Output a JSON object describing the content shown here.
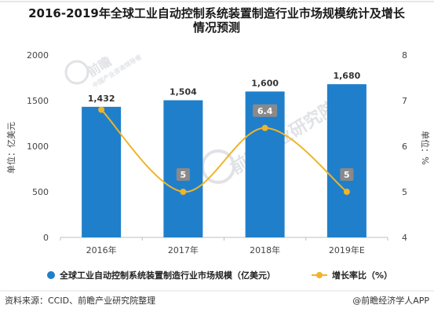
{
  "title_line1": "2016-2019年全球工业自动控制系统装置制造行业市场规模统计及增长",
  "title_line2": "情况预测",
  "colors": {
    "bar": "#1f7fcb",
    "line": "#f0b429",
    "line_label_bg": "#8a8a8a",
    "axis": "#bfbfbf",
    "header_rule": "#cfcfcf"
  },
  "watermark": {
    "text": "前瞻产业研究院",
    "logo_text": "前瞻",
    "subtext": "中国产业咨询领导者"
  },
  "chart_data": {
    "type": "bar+line",
    "categories": [
      "2016年",
      "2017年",
      "2018年",
      "2019年E"
    ],
    "series": [
      {
        "name": "全球工业自动控制系统装置制造行业市场规模（亿美元）",
        "type": "bar",
        "axis": "left",
        "values": [
          1432,
          1504,
          1600,
          1680
        ],
        "labels": [
          "1,432",
          "1,504",
          "1,600",
          "1,680"
        ]
      },
      {
        "name": "增长率比（%）",
        "type": "line",
        "axis": "right",
        "values": [
          6.8,
          5.0,
          6.4,
          5.0
        ],
        "labels": [
          "",
          "5",
          "6.4",
          "5"
        ]
      }
    ],
    "y_left": {
      "label": "单位：亿美元",
      "min": 0,
      "max": 2000,
      "ticks": [
        0,
        500,
        1000,
        1500,
        2000
      ],
      "tick_labels": [
        "0",
        "500",
        "1000",
        "1500",
        "2000"
      ]
    },
    "y_right": {
      "label": "单位：%",
      "min": 4,
      "max": 8,
      "ticks": [
        4,
        5,
        6,
        7,
        8
      ],
      "tick_labels": [
        "4",
        "5",
        "6",
        "7",
        "8"
      ]
    },
    "grid": false,
    "legend": "bottom"
  },
  "footer": {
    "source": "资料来源：CCID、前瞻产业研究院整理",
    "brand": "@前瞻经济学人APP"
  }
}
